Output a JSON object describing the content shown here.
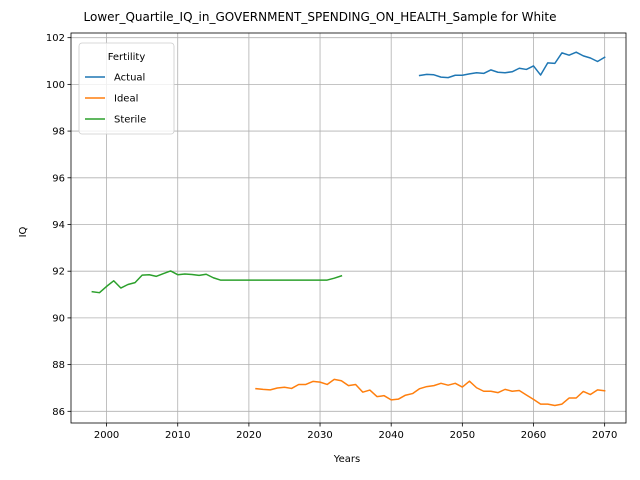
{
  "chart_data": {
    "type": "line",
    "title": "Lower_Quartile_IQ_in_GOVERNMENT_SPENDING_ON_HEALTH_Sample for White",
    "xlabel": "Years",
    "ylabel": "IQ",
    "xlim": [
      1995,
      2073
    ],
    "ylim": [
      85.5,
      102.2
    ],
    "xticks": [
      2000,
      2010,
      2020,
      2030,
      2040,
      2050,
      2060,
      2070
    ],
    "yticks": [
      86,
      88,
      90,
      92,
      94,
      96,
      98,
      100,
      102
    ],
    "grid": true,
    "legend": {
      "title": "Fertility",
      "placement": "top-left"
    },
    "series": [
      {
        "name": "Actual",
        "color": "#1f77b4",
        "x": [
          2044,
          2045,
          2046,
          2047,
          2048,
          2049,
          2050,
          2051,
          2052,
          2053,
          2054,
          2055,
          2056,
          2057,
          2058,
          2059,
          2060,
          2061,
          2062,
          2063,
          2064,
          2065,
          2066,
          2067,
          2068,
          2069,
          2070
        ],
        "y": [
          100.38,
          100.43,
          100.41,
          100.31,
          100.29,
          100.39,
          100.39,
          100.45,
          100.5,
          100.47,
          100.62,
          100.52,
          100.5,
          100.54,
          100.69,
          100.64,
          100.79,
          100.4,
          100.92,
          100.9,
          101.35,
          101.25,
          101.38,
          101.22,
          101.13,
          100.98,
          101.16
        ]
      },
      {
        "name": "Ideal",
        "color": "#ff7f0e",
        "x": [
          2021,
          2022,
          2023,
          2024,
          2025,
          2026,
          2027,
          2028,
          2029,
          2030,
          2031,
          2032,
          2033,
          2034,
          2035,
          2036,
          2037,
          2038,
          2039,
          2040,
          2041,
          2042,
          2043,
          2044,
          2045,
          2046,
          2047,
          2048,
          2049,
          2050,
          2051,
          2052,
          2053,
          2054,
          2055,
          2056,
          2057,
          2058,
          2059,
          2060,
          2061,
          2062,
          2063,
          2064,
          2065,
          2066,
          2067,
          2068,
          2069,
          2070
        ],
        "y": [
          86.97,
          86.94,
          86.92,
          87.0,
          87.03,
          86.98,
          87.15,
          87.15,
          87.28,
          87.25,
          87.15,
          87.37,
          87.31,
          87.1,
          87.15,
          86.82,
          86.91,
          86.63,
          86.67,
          86.49,
          86.52,
          86.69,
          86.76,
          86.97,
          87.06,
          87.1,
          87.2,
          87.12,
          87.2,
          87.04,
          87.29,
          87.01,
          86.86,
          86.86,
          86.8,
          86.94,
          86.86,
          86.89,
          86.7,
          86.51,
          86.31,
          86.31,
          86.25,
          86.31,
          86.57,
          86.57,
          86.85,
          86.72,
          86.92,
          86.88
        ]
      },
      {
        "name": "Sterile",
        "color": "#2ca02c",
        "x": [
          1998,
          1999,
          2000,
          2001,
          2002,
          2003,
          2004,
          2005,
          2006,
          2007,
          2008,
          2009,
          2010,
          2011,
          2012,
          2013,
          2014,
          2015,
          2016,
          2017,
          2018,
          2019,
          2020,
          2021,
          2022,
          2023,
          2024,
          2025,
          2026,
          2027,
          2028,
          2029,
          2030,
          2031,
          2032,
          2033
        ],
        "y": [
          91.12,
          91.08,
          91.35,
          91.59,
          91.28,
          91.43,
          91.51,
          91.83,
          91.85,
          91.78,
          91.9,
          92.01,
          91.85,
          91.88,
          91.86,
          91.82,
          91.87,
          91.72,
          91.62,
          91.62,
          91.62,
          91.62,
          91.62,
          91.62,
          91.62,
          91.62,
          91.62,
          91.62,
          91.62,
          91.62,
          91.62,
          91.62,
          91.62,
          91.62,
          91.7,
          91.8
        ]
      }
    ]
  }
}
